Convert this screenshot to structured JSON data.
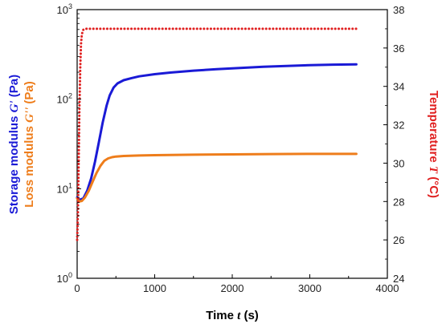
{
  "chart_data": {
    "type": "line",
    "title": "",
    "xlabel": {
      "prefix": "Time ",
      "symbol": "t",
      "suffix": " (s)"
    },
    "ylabel_left": [
      {
        "prefix": "Storage modulus ",
        "symbol": "G'",
        "suffix": " (Pa)",
        "color": "#1a1ad6"
      },
      {
        "prefix": "Loss modulus ",
        "symbol": "G''",
        "suffix": " (Pa)",
        "color": "#ee7d1b"
      }
    ],
    "ylabel_right": {
      "prefix": "Temperature ",
      "symbol": "T",
      "suffix": " (°C)",
      "color": "#e02020"
    },
    "xlim": [
      0,
      4000
    ],
    "ylim_left": [
      1,
      1000
    ],
    "ylim_right": [
      24,
      38
    ],
    "yscale_left": "log",
    "grid": false,
    "x_ticks": [
      "0",
      "1000",
      "2000",
      "3000",
      "4000"
    ],
    "y_left_ticks": [
      {
        "value": 1,
        "base": "10",
        "exp": "0"
      },
      {
        "value": 10,
        "base": "10",
        "exp": "1"
      },
      {
        "value": 100,
        "base": "10",
        "exp": "2"
      },
      {
        "value": 1000,
        "base": "10",
        "exp": "3"
      }
    ],
    "y_right_ticks": [
      "24",
      "26",
      "28",
      "30",
      "32",
      "34",
      "36",
      "38"
    ],
    "series": [
      {
        "id": "storage",
        "axis": "left",
        "color": "#1a1ad6",
        "style": "solid",
        "x": [
          0,
          30,
          80,
          130,
          180,
          230,
          280,
          330,
          380,
          420,
          470,
          520,
          600,
          700,
          800,
          1000,
          1200,
          1500,
          1800,
          2100,
          2400,
          2700,
          3000,
          3300,
          3600
        ],
        "y": [
          8.0,
          7.5,
          7.8,
          9.5,
          13,
          20,
          33,
          55,
          85,
          110,
          135,
          150,
          163,
          172,
          180,
          190,
          198,
          208,
          216,
          223,
          230,
          235,
          240,
          243,
          245
        ]
      },
      {
        "id": "loss",
        "axis": "left",
        "color": "#ee7d1b",
        "style": "solid",
        "x": [
          0,
          30,
          60,
          100,
          150,
          200,
          250,
          300,
          350,
          400,
          450,
          500,
          600,
          800,
          1000,
          1500,
          2000,
          2500,
          3000,
          3600
        ],
        "y": [
          7.8,
          7.2,
          7.3,
          8.0,
          9.5,
          12,
          15,
          18,
          20.5,
          21.8,
          22.5,
          22.9,
          23.2,
          23.5,
          23.7,
          24.0,
          24.2,
          24.4,
          24.5,
          24.5
        ]
      },
      {
        "id": "temperature",
        "axis": "right",
        "color": "#e02020",
        "style": "dotted",
        "x": [
          0,
          10,
          20,
          30,
          40,
          50,
          60,
          70,
          80,
          100,
          150,
          200,
          300,
          500,
          1000,
          1500,
          2000,
          2500,
          3000,
          3600
        ],
        "y": [
          26.0,
          27.5,
          30.0,
          33.0,
          35.0,
          36.2,
          36.7,
          36.85,
          36.95,
          37.0,
          37.0,
          37.0,
          37.0,
          37.0,
          37.0,
          37.0,
          37.0,
          37.0,
          37.0,
          37.0
        ]
      }
    ]
  }
}
